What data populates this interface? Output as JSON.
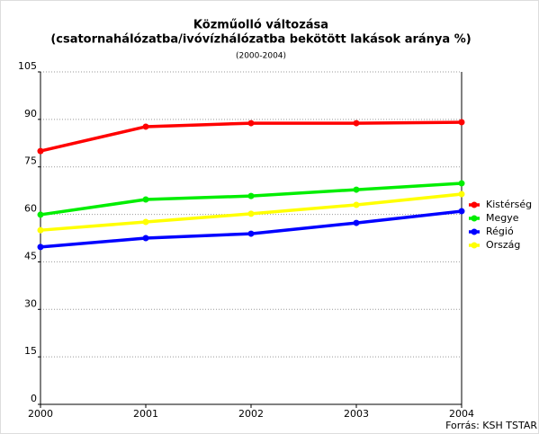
{
  "chart_data": {
    "type": "line",
    "title": "Közműolló változása",
    "subtitle": "(csatornahálózatba/ivóvízhálózatba bekötött lakások aránya %)",
    "period": "(2000-2004)",
    "source": "Forrás: KSH TSTAR",
    "x": [
      2000,
      2001,
      2002,
      2003,
      2004
    ],
    "xlim": [
      2000,
      2004
    ],
    "xticks": [
      2000,
      2001,
      2002,
      2003,
      2004
    ],
    "ylim": [
      0,
      105
    ],
    "yticks": [
      0,
      15,
      30,
      45,
      60,
      75,
      90,
      105
    ],
    "grid": true,
    "legend": "right",
    "series": [
      {
        "name": "Kistérség",
        "color": "#ff0000",
        "values": [
          80.0,
          87.7,
          88.8,
          88.8,
          89.1
        ]
      },
      {
        "name": "Megye",
        "color": "#00ee00",
        "values": [
          59.9,
          64.7,
          65.8,
          67.8,
          69.8
        ]
      },
      {
        "name": "Régió",
        "color": "#0000ff",
        "values": [
          49.7,
          52.5,
          53.9,
          57.3,
          61.0
        ]
      },
      {
        "name": "Ország",
        "color": "#ffff00",
        "values": [
          55.0,
          57.6,
          60.2,
          63.0,
          66.4
        ]
      }
    ]
  }
}
